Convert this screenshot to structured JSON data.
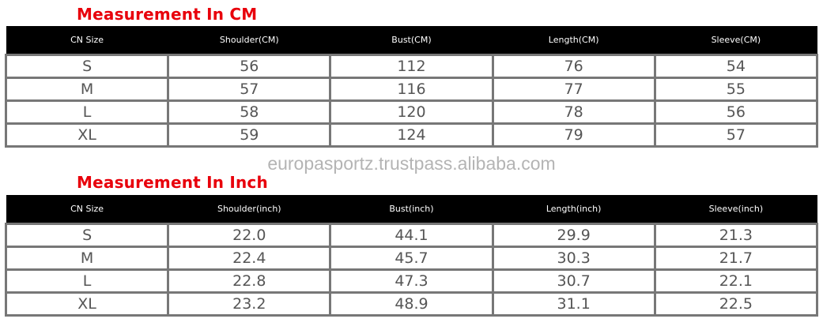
{
  "tables": [
    {
      "title": "Measurement In CM",
      "headers": [
        "CN Size",
        "Shoulder(CM)",
        "Bust(CM)",
        "Length(CM)",
        "Sleeve(CM)"
      ],
      "rows": [
        [
          "S",
          "56",
          "112",
          "76",
          "54"
        ],
        [
          "M",
          "57",
          "116",
          "77",
          "55"
        ],
        [
          "L",
          "58",
          "120",
          "78",
          "56"
        ],
        [
          "XL",
          "59",
          "124",
          "79",
          "57"
        ]
      ]
    },
    {
      "title": "Measurement In Inch",
      "headers": [
        "CN Size",
        "Shoulder(inch)",
        "Bust(inch)",
        "Length(inch)",
        "Sleeve(inch)"
      ],
      "rows": [
        [
          "S",
          "22.0",
          "44.1",
          "29.9",
          "21.3"
        ],
        [
          "M",
          "22.4",
          "45.7",
          "30.3",
          "21.7"
        ],
        [
          "L",
          "22.8",
          "47.3",
          "30.7",
          "22.1"
        ],
        [
          "XL",
          "23.2",
          "48.9",
          "31.1",
          "22.5"
        ]
      ]
    }
  ],
  "watermark": "europasportz.trustpass.alibaba.com",
  "colors": {
    "title": "#e8000b",
    "header_bg": "#000000",
    "border": "#777777"
  }
}
